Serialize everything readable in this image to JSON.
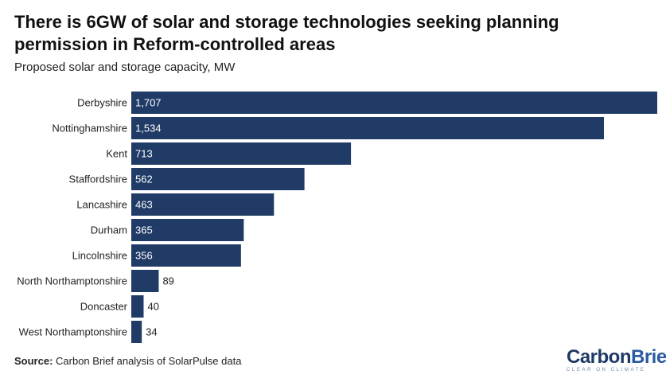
{
  "title": "There is 6GW of solar and storage technologies seeking planning permission in Reform-controlled areas",
  "subtitle": "Proposed solar and storage capacity, MW",
  "source_label": "Source:",
  "source_text": " Carbon Brief analysis of SolarPulse data",
  "logo": {
    "word_a": "Carbon",
    "word_b": "Brief",
    "tagline": "CLEAR ON CLIMATE"
  },
  "colors": {
    "bar": "#1f3b66",
    "label_inside": "#ffffff",
    "label_outside": "#222222"
  },
  "chart_data": {
    "type": "bar",
    "orientation": "horizontal",
    "title": "There is 6GW of solar and storage technologies seeking planning permission in Reform-controlled areas",
    "subtitle": "Proposed solar and storage capacity, MW",
    "categories": [
      "Derbyshire",
      "Nottinghamshire",
      "Kent",
      "Staffordshire",
      "Lancashire",
      "Durham",
      "Lincolnshire",
      "North Northamptonshire",
      "Doncaster",
      "West Northamptonshire"
    ],
    "values": [
      1707,
      1534,
      713,
      562,
      463,
      365,
      356,
      89,
      40,
      34
    ],
    "value_labels": [
      "1,707",
      "1,534",
      "713",
      "562",
      "463",
      "365",
      "356",
      "89",
      "40",
      "34"
    ],
    "xlim": [
      0,
      1707
    ],
    "grid": false,
    "legend": "none"
  }
}
